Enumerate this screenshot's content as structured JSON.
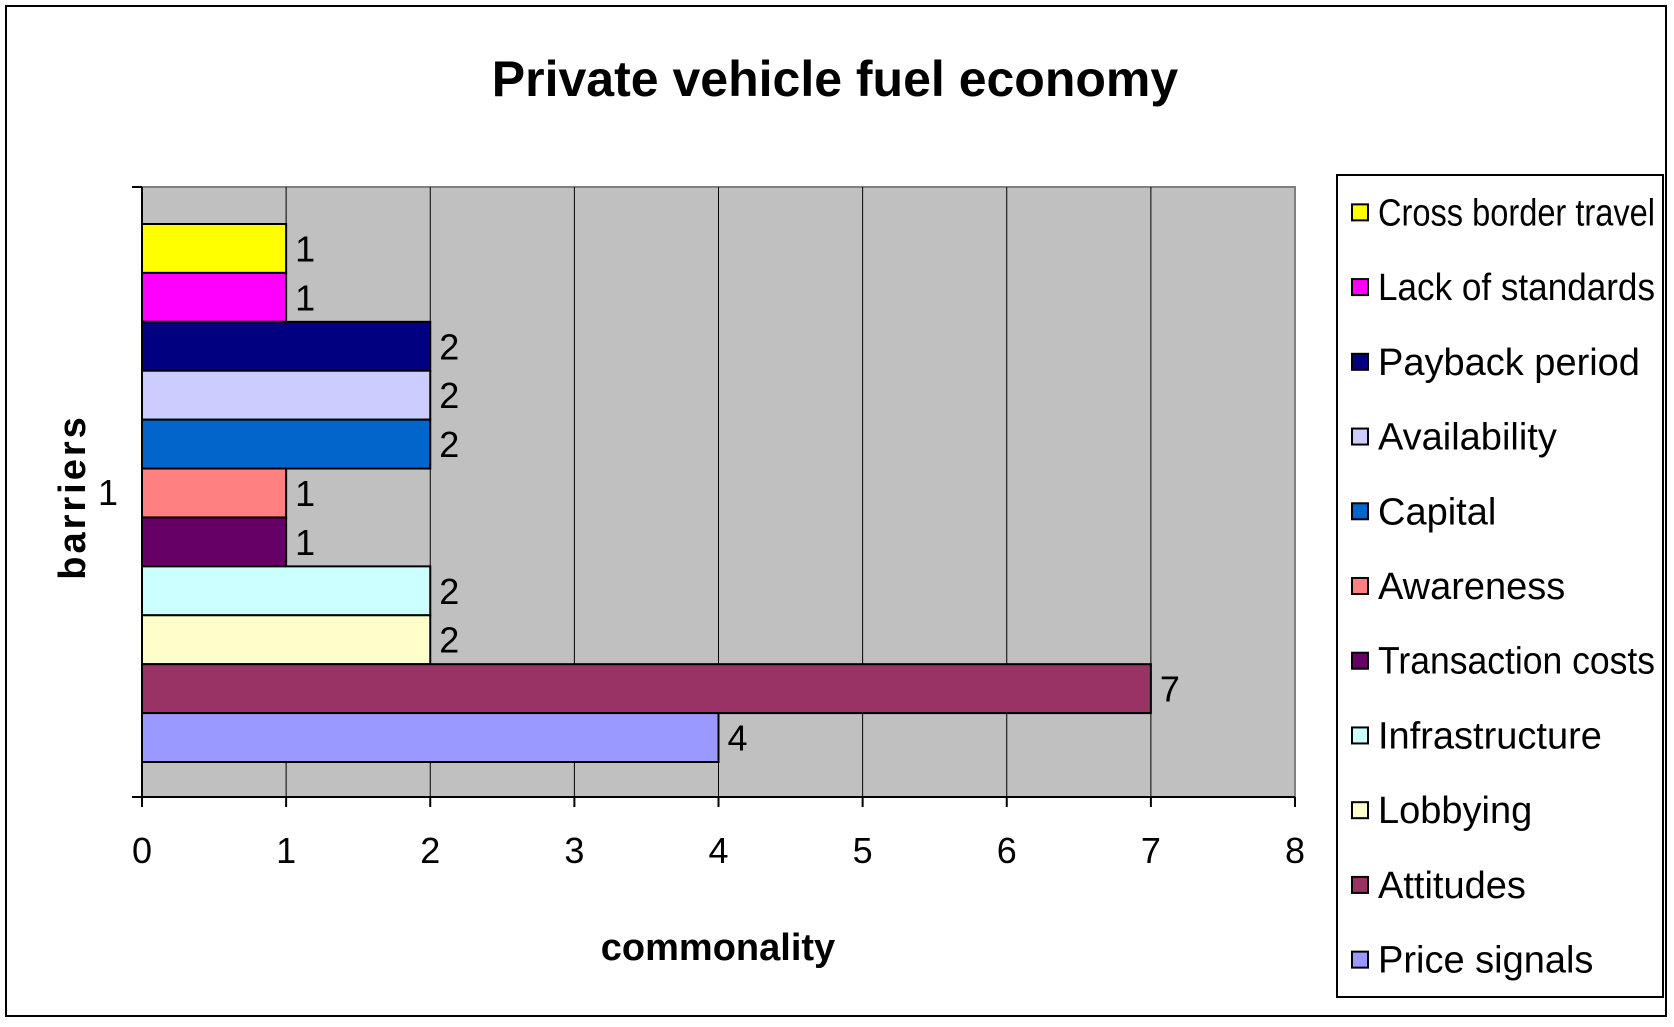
{
  "chart_data": {
    "type": "bar",
    "orientation": "horizontal",
    "title": "Private vehicle fuel economy",
    "xlabel": "commonality",
    "ylabel": "barriers",
    "categories": [
      "1"
    ],
    "xlim": [
      0,
      8
    ],
    "x_ticks": [
      "0",
      "1",
      "2",
      "3",
      "4",
      "5",
      "6",
      "7",
      "8"
    ],
    "grid": true,
    "legend_position": "right",
    "plot_background": "#c0c0c0",
    "series": [
      {
        "name": "Cross border travel",
        "values": [
          1
        ],
        "label": "1",
        "color": "#ffff00"
      },
      {
        "name": "Lack of standards",
        "values": [
          1
        ],
        "label": "1",
        "color": "#ff00ff"
      },
      {
        "name": "Payback period",
        "values": [
          2
        ],
        "label": "2",
        "color": "#000080"
      },
      {
        "name": "Availability",
        "values": [
          2
        ],
        "label": "2",
        "color": "#ccccff"
      },
      {
        "name": "Capital",
        "values": [
          2
        ],
        "label": "2",
        "color": "#0066cc"
      },
      {
        "name": "Awareness",
        "values": [
          1
        ],
        "label": "1",
        "color": "#ff8080"
      },
      {
        "name": "Transaction costs",
        "values": [
          1
        ],
        "label": "1",
        "color": "#660066"
      },
      {
        "name": "Infrastructure",
        "values": [
          2
        ],
        "label": "2",
        "color": "#ccffff"
      },
      {
        "name": "Lobbying",
        "values": [
          2
        ],
        "label": "2",
        "color": "#ffffcc"
      },
      {
        "name": "Attitudes",
        "values": [
          7
        ],
        "label": "7",
        "color": "#993366"
      },
      {
        "name": "Price signals",
        "values": [
          4
        ],
        "label": "4",
        "color": "#9999ff"
      }
    ]
  }
}
